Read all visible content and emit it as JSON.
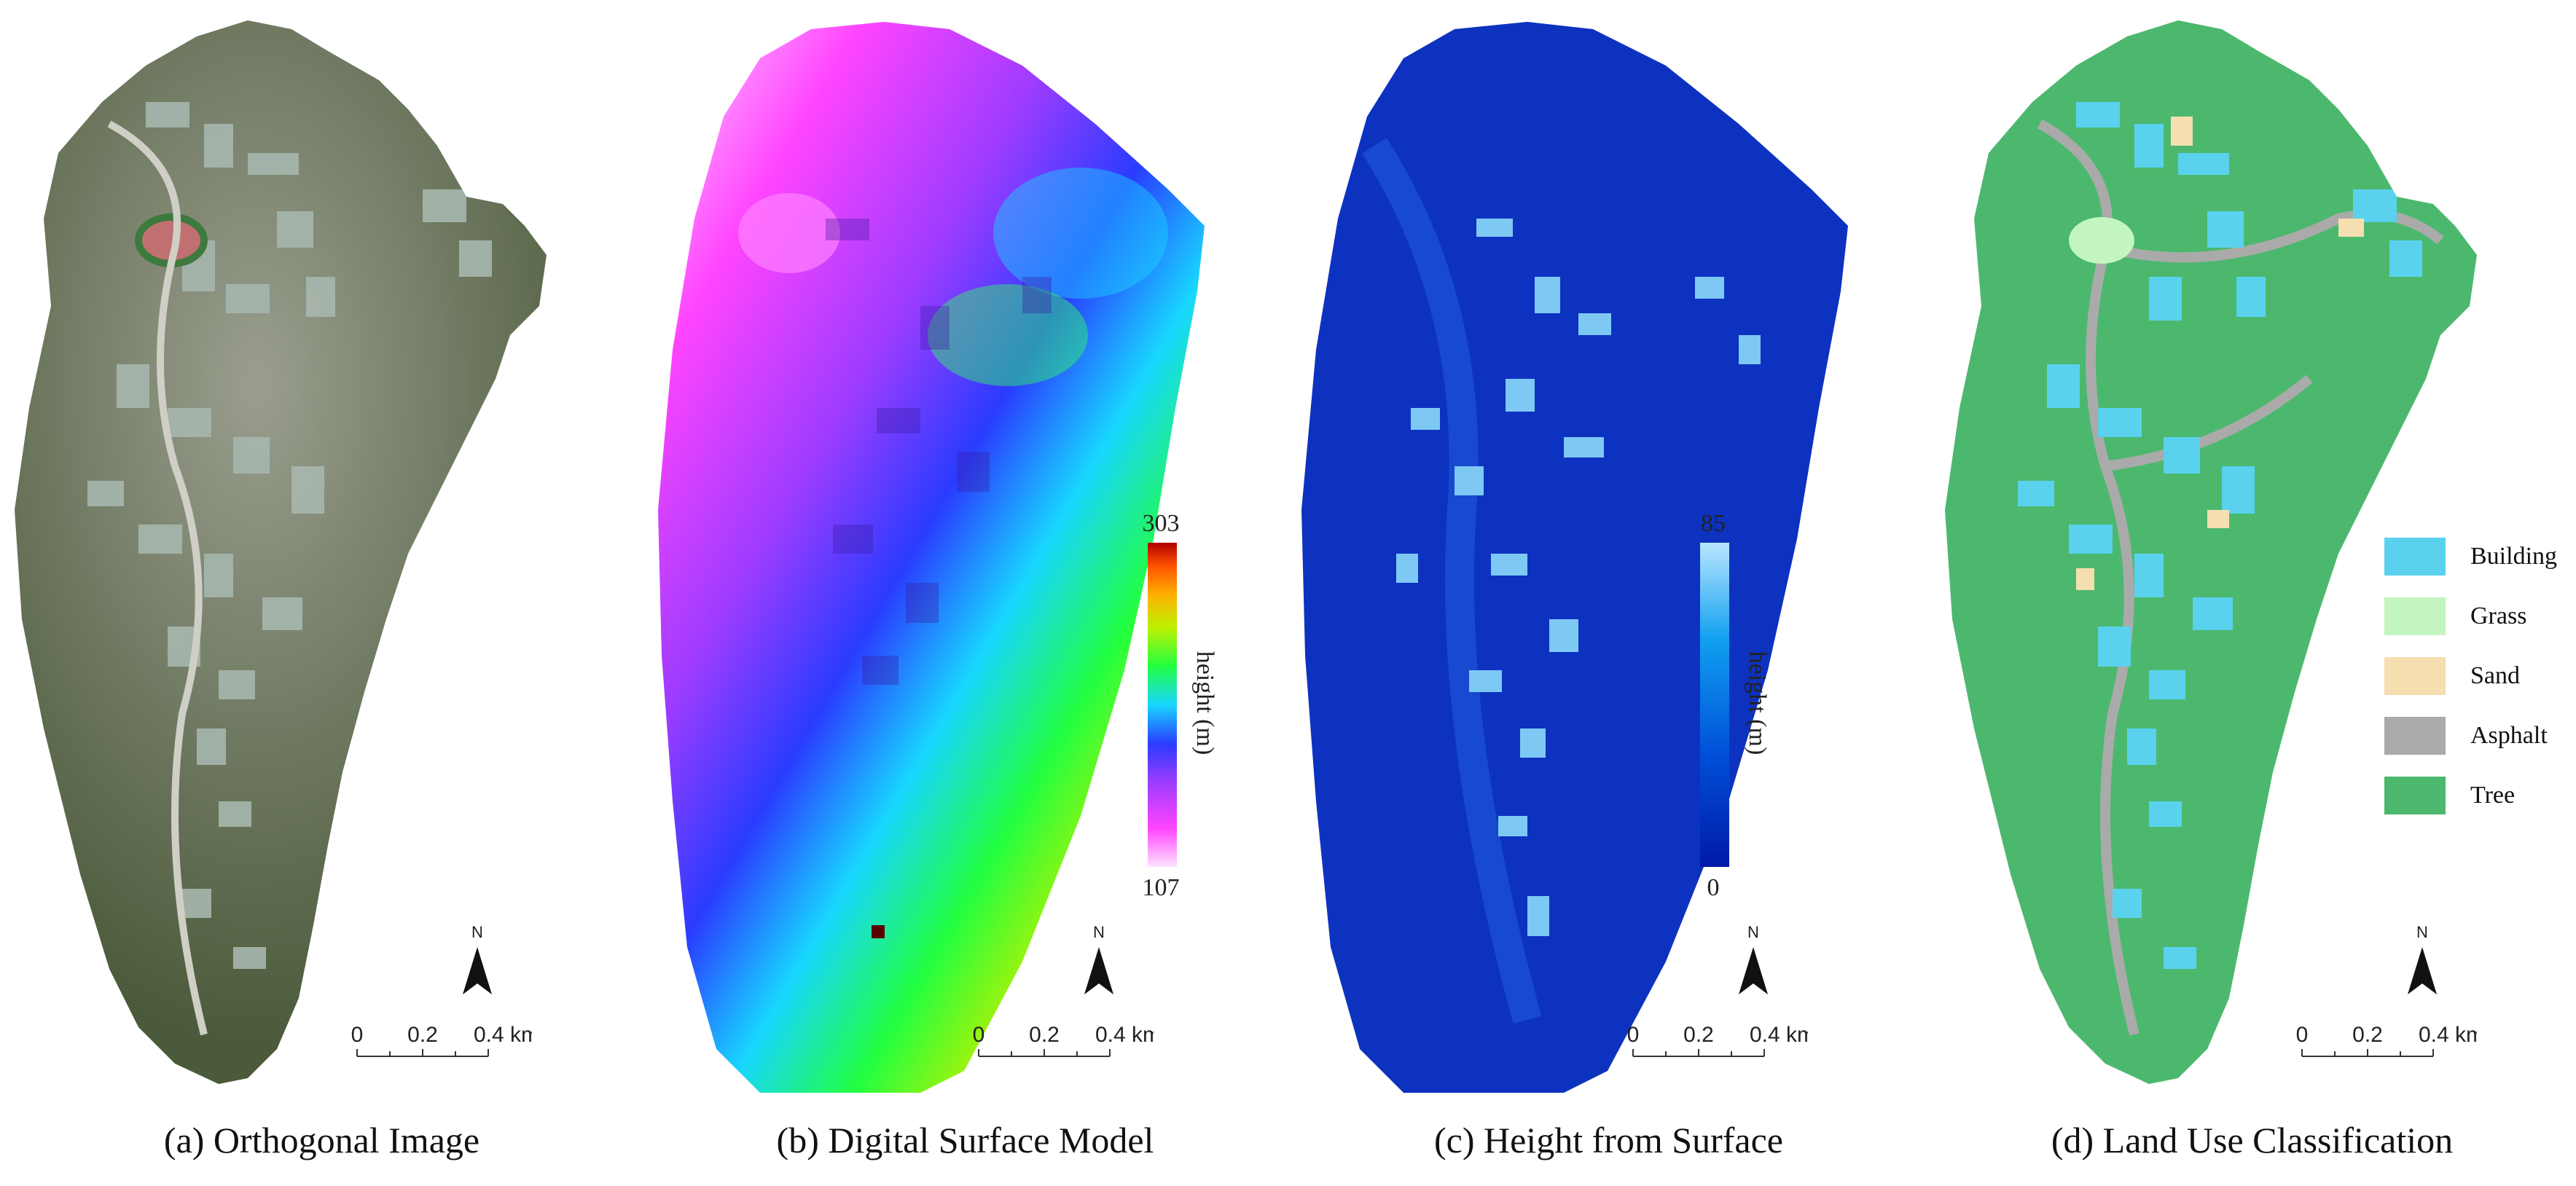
{
  "panels": [
    {
      "id": "a",
      "caption": "(a) Orthogonal Image",
      "scale_ticks": [
        "0",
        "0.2",
        "0.4 km"
      ],
      "north_label": "N"
    },
    {
      "id": "b",
      "caption": "(b) Digital  Surface Model",
      "colorbar": {
        "max": "303",
        "min": "107",
        "label": "height (m)"
      },
      "scale_ticks": [
        "0",
        "0.2",
        "0.4 km"
      ],
      "north_label": "N"
    },
    {
      "id": "c",
      "caption": "(c) Height  from Surface",
      "colorbar": {
        "max": "85",
        "min": "0",
        "label": "height (m)"
      },
      "scale_ticks": [
        "0",
        "0.2",
        "0.4 km"
      ],
      "north_label": "N"
    },
    {
      "id": "d",
      "caption": "(d) Land Use Classification",
      "legend": [
        {
          "label": "Building",
          "color": "#5ad2ee"
        },
        {
          "label": "Grass",
          "color": "#c3f5c0"
        },
        {
          "label": "Sand",
          "color": "#f5deaf"
        },
        {
          "label": "Asphalt",
          "color": "#aaaaaa"
        },
        {
          "label": "Tree",
          "color": "#4cb86e"
        }
      ],
      "scale_ticks": [
        "0",
        "0.2",
        "0.4 km"
      ],
      "north_label": "N"
    }
  ],
  "colors": {
    "dsm_ramp": [
      "#ffe4ff",
      "#ff44ff",
      "#9e3cff",
      "#2a3cff",
      "#18d6ff",
      "#22ff40",
      "#bff000",
      "#ffb000",
      "#ff5000",
      "#b00000"
    ],
    "hfs_ramp": [
      "#001aa8",
      "#0050d8",
      "#10a0f0",
      "#b8e6ff"
    ],
    "ortho_tree": "#4b5a3a",
    "ortho_urban": "#8c9288"
  }
}
